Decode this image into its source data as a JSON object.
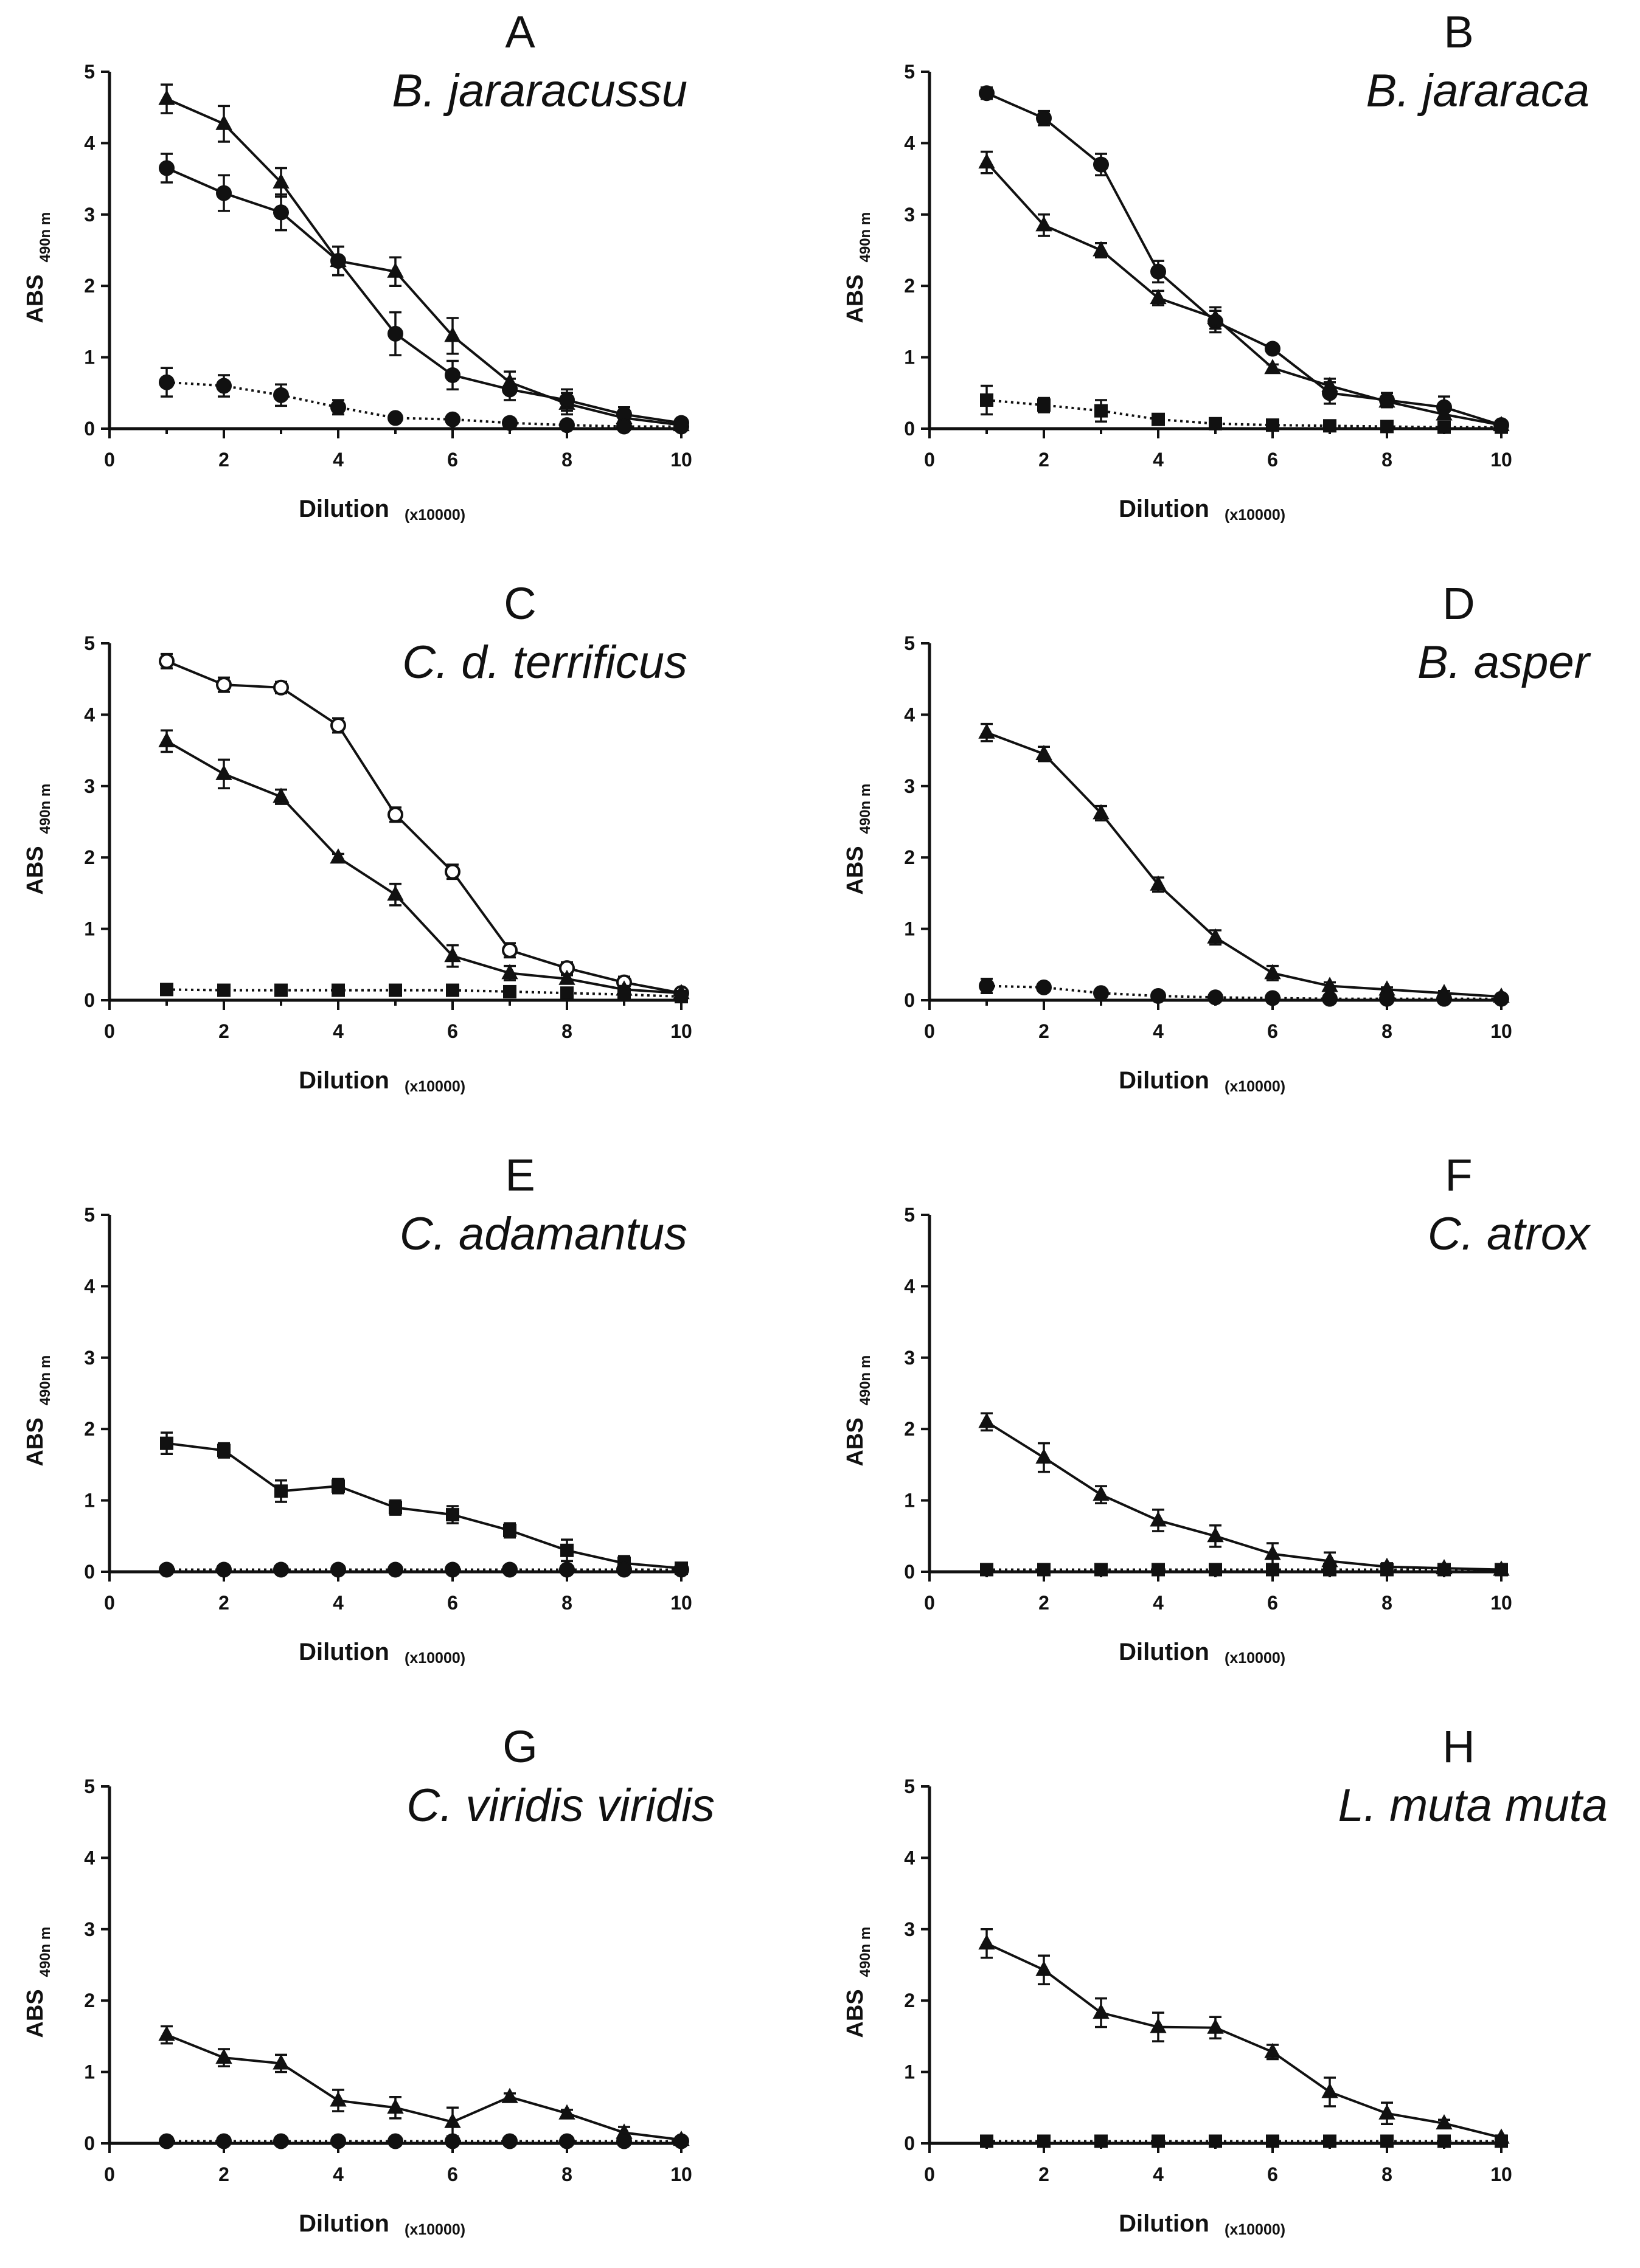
{
  "chart_data": [
    {
      "type": "line",
      "panel": "A",
      "title": "B. jararacussu",
      "xlabel": "Dilution",
      "xlabel_suffix": "(x10000)",
      "ylabel": "ABS",
      "ylabel_sub": "490n m",
      "xlim": [
        0,
        10
      ],
      "ylim": [
        0,
        5
      ],
      "xticks": [
        0,
        2,
        4,
        6,
        8,
        10
      ],
      "yticks": [
        0,
        1,
        2,
        3,
        4,
        5
      ],
      "x": [
        1,
        2,
        3,
        4,
        5,
        6,
        7,
        8,
        9,
        10
      ],
      "series": [
        {
          "name": "series-1",
          "style": "solid",
          "marker": "triangle",
          "values": [
            4.62,
            4.27,
            3.45,
            2.35,
            2.2,
            1.3,
            0.65,
            0.35,
            0.15,
            0.05
          ],
          "errors": [
            0.2,
            0.25,
            0.2,
            0.2,
            0.2,
            0.25,
            0.15,
            0.15,
            0.1,
            0.05
          ]
        },
        {
          "name": "series-2",
          "style": "solid",
          "marker": "circle",
          "values": [
            3.65,
            3.3,
            3.03,
            2.35,
            1.33,
            0.75,
            0.55,
            0.4,
            0.2,
            0.08
          ],
          "errors": [
            0.2,
            0.25,
            0.25,
            0.2,
            0.3,
            0.2,
            0.15,
            0.15,
            0.1,
            0.05
          ]
        },
        {
          "name": "series-3",
          "style": "dotted",
          "marker": "circle",
          "values": [
            0.65,
            0.6,
            0.47,
            0.3,
            0.15,
            0.13,
            0.08,
            0.05,
            0.03,
            0.03
          ],
          "errors": [
            0.2,
            0.15,
            0.15,
            0.1,
            0.05,
            0.05,
            0.03,
            0.03,
            0.02,
            0.02
          ]
        }
      ]
    },
    {
      "type": "line",
      "panel": "B",
      "title": "B. jararaca",
      "xlabel": "Dilution",
      "xlabel_suffix": "(x10000)",
      "ylabel": "ABS",
      "ylabel_sub": "490n m",
      "xlim": [
        0,
        10
      ],
      "ylim": [
        0,
        5
      ],
      "xticks": [
        0,
        2,
        4,
        6,
        8,
        10
      ],
      "yticks": [
        0,
        1,
        2,
        3,
        4,
        5
      ],
      "x": [
        1,
        2,
        3,
        4,
        5,
        6,
        7,
        8,
        9,
        10
      ],
      "series": [
        {
          "name": "series-1",
          "style": "solid",
          "marker": "circle",
          "values": [
            4.7,
            4.35,
            3.7,
            2.2,
            1.5,
            1.12,
            0.5,
            0.4,
            0.3,
            0.05
          ],
          "errors": [
            0.08,
            0.1,
            0.15,
            0.15,
            0.15,
            0.05,
            0.15,
            0.1,
            0.15,
            0.05
          ]
        },
        {
          "name": "series-2",
          "style": "solid",
          "marker": "triangle",
          "values": [
            3.73,
            2.85,
            2.5,
            1.83,
            1.55,
            0.85,
            0.6,
            0.38,
            0.2,
            0.05
          ],
          "errors": [
            0.15,
            0.15,
            0.1,
            0.1,
            0.15,
            0.05,
            0.1,
            0.08,
            0.05,
            0.03
          ]
        },
        {
          "name": "series-3",
          "style": "dotted",
          "marker": "square",
          "values": [
            0.4,
            0.33,
            0.25,
            0.13,
            0.07,
            0.05,
            0.04,
            0.03,
            0.02,
            0.02
          ],
          "errors": [
            0.2,
            0.1,
            0.15,
            0.05,
            0.03,
            0.02,
            0.02,
            0.02,
            0.01,
            0.01
          ]
        }
      ]
    },
    {
      "type": "line",
      "panel": "C",
      "title": "C. d. terrificus",
      "xlabel": "Dilution",
      "xlabel_suffix": "(x10000)",
      "ylabel": "ABS",
      "ylabel_sub": "490n m",
      "xlim": [
        0,
        10
      ],
      "ylim": [
        0,
        5
      ],
      "xticks": [
        0,
        2,
        4,
        6,
        8,
        10
      ],
      "yticks": [
        0,
        1,
        2,
        3,
        4,
        5
      ],
      "x": [
        1,
        2,
        3,
        4,
        5,
        6,
        7,
        8,
        9,
        10
      ],
      "series": [
        {
          "name": "series-1",
          "style": "solid",
          "marker": "open-circle",
          "values": [
            4.75,
            4.42,
            4.38,
            3.85,
            2.6,
            1.8,
            0.7,
            0.45,
            0.25,
            0.1
          ],
          "errors": [
            0.1,
            0.1,
            0.08,
            0.1,
            0.1,
            0.1,
            0.1,
            0.08,
            0.08,
            0.05
          ]
        },
        {
          "name": "series-2",
          "style": "solid",
          "marker": "triangle",
          "values": [
            3.63,
            3.17,
            2.85,
            2.0,
            1.48,
            0.62,
            0.38,
            0.3,
            0.15,
            0.1
          ],
          "errors": [
            0.15,
            0.2,
            0.1,
            0.05,
            0.15,
            0.15,
            0.1,
            0.05,
            0.05,
            0.03
          ]
        },
        {
          "name": "series-3",
          "style": "dotted",
          "marker": "square",
          "values": [
            0.15,
            0.14,
            0.14,
            0.14,
            0.14,
            0.14,
            0.12,
            0.1,
            0.08,
            0.05
          ],
          "errors": [
            0.03,
            0.03,
            0.03,
            0.03,
            0.03,
            0.03,
            0.03,
            0.03,
            0.02,
            0.02
          ]
        }
      ]
    },
    {
      "type": "line",
      "panel": "D",
      "title": "B. asper",
      "xlabel": "Dilution",
      "xlabel_suffix": "(x10000)",
      "ylabel": "ABS",
      "ylabel_sub": "490n m",
      "xlim": [
        0,
        10
      ],
      "ylim": [
        0,
        5
      ],
      "xticks": [
        0,
        2,
        4,
        6,
        8,
        10
      ],
      "yticks": [
        0,
        1,
        2,
        3,
        4,
        5
      ],
      "x": [
        1,
        2,
        3,
        4,
        5,
        6,
        7,
        8,
        9,
        10
      ],
      "series": [
        {
          "name": "series-1",
          "style": "solid",
          "marker": "triangle",
          "values": [
            3.75,
            3.45,
            2.62,
            1.62,
            0.88,
            0.38,
            0.2,
            0.15,
            0.1,
            0.05
          ],
          "errors": [
            0.12,
            0.1,
            0.1,
            0.1,
            0.1,
            0.1,
            0.05,
            0.03,
            0.03,
            0.02
          ]
        },
        {
          "name": "series-2",
          "style": "dotted",
          "marker": "circle",
          "values": [
            0.2,
            0.18,
            0.1,
            0.06,
            0.04,
            0.03,
            0.02,
            0.02,
            0.02,
            0.02
          ],
          "errors": [
            0.1,
            0.05,
            0.03,
            0.02,
            0.02,
            0.02,
            0.01,
            0.01,
            0.01,
            0.01
          ]
        }
      ]
    },
    {
      "type": "line",
      "panel": "E",
      "title": "C. adamantus",
      "xlabel": "Dilution",
      "xlabel_suffix": "(x10000)",
      "ylabel": "ABS",
      "ylabel_sub": "490n m",
      "xlim": [
        0,
        10
      ],
      "ylim": [
        0,
        5
      ],
      "xticks": [
        0,
        2,
        4,
        6,
        8,
        10
      ],
      "yticks": [
        0,
        1,
        2,
        3,
        4,
        5
      ],
      "x": [
        1,
        2,
        3,
        4,
        5,
        6,
        7,
        8,
        9,
        10
      ],
      "series": [
        {
          "name": "series-1",
          "style": "solid",
          "marker": "square",
          "values": [
            1.8,
            1.7,
            1.13,
            1.2,
            0.9,
            0.8,
            0.58,
            0.3,
            0.12,
            0.05
          ],
          "errors": [
            0.15,
            0.1,
            0.15,
            0.1,
            0.1,
            0.12,
            0.1,
            0.15,
            0.1,
            0.03
          ]
        },
        {
          "name": "series-2",
          "style": "dotted",
          "marker": "circle",
          "values": [
            0.03,
            0.03,
            0.03,
            0.03,
            0.03,
            0.03,
            0.03,
            0.03,
            0.03,
            0.03
          ],
          "errors": [
            0.01,
            0.01,
            0.01,
            0.01,
            0.01,
            0.01,
            0.01,
            0.01,
            0.01,
            0.01
          ]
        }
      ]
    },
    {
      "type": "line",
      "panel": "F",
      "title": "C. atrox",
      "xlabel": "Dilution",
      "xlabel_suffix": "(x10000)",
      "ylabel": "ABS",
      "ylabel_sub": "490n m",
      "xlim": [
        0,
        10
      ],
      "ylim": [
        0,
        5
      ],
      "xticks": [
        0,
        2,
        4,
        6,
        8,
        10
      ],
      "yticks": [
        0,
        1,
        2,
        3,
        4,
        5
      ],
      "x": [
        1,
        2,
        3,
        4,
        5,
        6,
        7,
        8,
        9,
        10
      ],
      "series": [
        {
          "name": "series-1",
          "style": "solid",
          "marker": "triangle",
          "values": [
            2.1,
            1.6,
            1.08,
            0.72,
            0.5,
            0.25,
            0.15,
            0.07,
            0.05,
            0.03
          ],
          "errors": [
            0.12,
            0.2,
            0.12,
            0.15,
            0.15,
            0.15,
            0.12,
            0.05,
            0.03,
            0.02
          ]
        },
        {
          "name": "series-2",
          "style": "dotted",
          "marker": "square",
          "values": [
            0.03,
            0.03,
            0.03,
            0.03,
            0.03,
            0.03,
            0.03,
            0.03,
            0.03,
            0.03
          ],
          "errors": [
            0.01,
            0.01,
            0.01,
            0.01,
            0.01,
            0.01,
            0.01,
            0.01,
            0.01,
            0.01
          ]
        }
      ]
    },
    {
      "type": "line",
      "panel": "G",
      "title": "C. viridis viridis",
      "xlabel": "Dilution",
      "xlabel_suffix": "(x10000)",
      "ylabel": "ABS",
      "ylabel_sub": "490n m",
      "xlim": [
        0,
        10
      ],
      "ylim": [
        0,
        5
      ],
      "xticks": [
        0,
        2,
        4,
        6,
        8,
        10
      ],
      "yticks": [
        0,
        1,
        2,
        3,
        4,
        5
      ],
      "x": [
        1,
        2,
        3,
        4,
        5,
        6,
        7,
        8,
        9,
        10
      ],
      "series": [
        {
          "name": "series-1",
          "style": "solid",
          "marker": "triangle",
          "values": [
            1.52,
            1.2,
            1.12,
            0.6,
            0.5,
            0.3,
            0.65,
            0.42,
            0.15,
            0.05
          ],
          "errors": [
            0.12,
            0.12,
            0.12,
            0.15,
            0.15,
            0.2,
            0.05,
            0.05,
            0.08,
            0.03
          ]
        },
        {
          "name": "series-2",
          "style": "dotted",
          "marker": "circle",
          "values": [
            0.03,
            0.03,
            0.03,
            0.03,
            0.03,
            0.03,
            0.03,
            0.03,
            0.03,
            0.03
          ],
          "errors": [
            0.01,
            0.01,
            0.01,
            0.01,
            0.01,
            0.01,
            0.01,
            0.01,
            0.01,
            0.01
          ]
        }
      ]
    },
    {
      "type": "line",
      "panel": "H",
      "title": "L. muta muta",
      "xlabel": "Dilution",
      "xlabel_suffix": "(x10000)",
      "ylabel": "ABS",
      "ylabel_sub": "490n m",
      "xlim": [
        0,
        10
      ],
      "ylim": [
        0,
        5
      ],
      "xticks": [
        0,
        2,
        4,
        6,
        8,
        10
      ],
      "yticks": [
        0,
        1,
        2,
        3,
        4,
        5
      ],
      "x": [
        1,
        2,
        3,
        4,
        5,
        6,
        7,
        8,
        9,
        10
      ],
      "series": [
        {
          "name": "series-1",
          "style": "solid",
          "marker": "triangle",
          "values": [
            2.8,
            2.43,
            1.83,
            1.63,
            1.62,
            1.28,
            0.72,
            0.42,
            0.28,
            0.08
          ],
          "errors": [
            0.2,
            0.2,
            0.2,
            0.2,
            0.15,
            0.1,
            0.2,
            0.15,
            0.05,
            0.03
          ]
        },
        {
          "name": "series-2",
          "style": "dotted",
          "marker": "square",
          "values": [
            0.03,
            0.03,
            0.03,
            0.03,
            0.03,
            0.03,
            0.03,
            0.03,
            0.03,
            0.03
          ],
          "errors": [
            0.01,
            0.01,
            0.01,
            0.01,
            0.01,
            0.01,
            0.01,
            0.01,
            0.01,
            0.01
          ]
        }
      ]
    }
  ]
}
